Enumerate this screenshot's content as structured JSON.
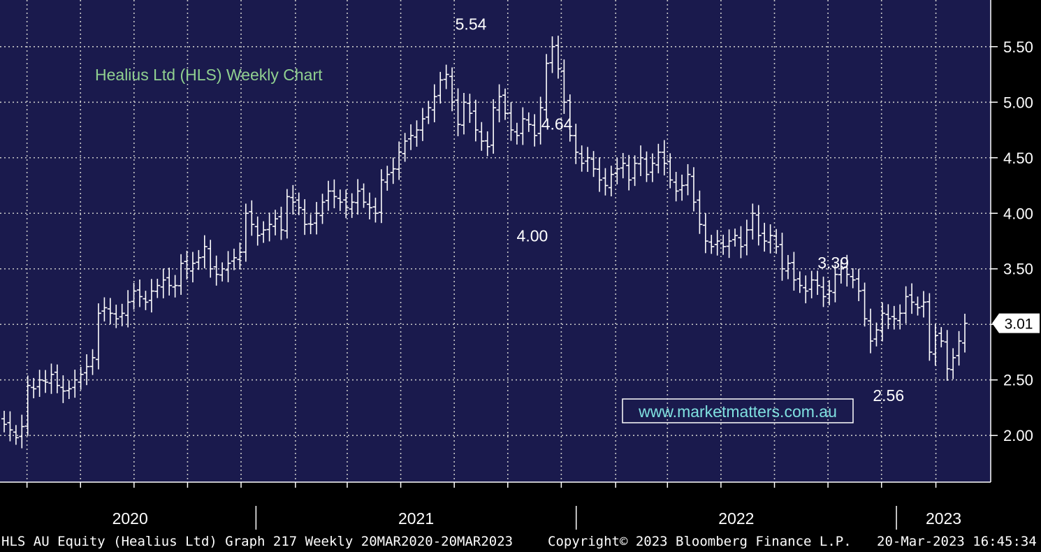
{
  "chart_data": {
    "type": "ohlc",
    "title": "Healius Ltd (HLS) Weekly Chart",
    "watermark": "www.marketmatters.com.au",
    "last_price": "3.01",
    "y_ticks": [
      "2.00",
      "2.50",
      "3.00",
      "3.50",
      "4.00",
      "4.50",
      "5.00",
      "5.50"
    ],
    "ylim": [
      1.58,
      5.92
    ],
    "x_range": [
      "2020-03-20",
      "2023-03-20"
    ],
    "years": [
      "2020",
      "2021",
      "2022",
      "2023"
    ],
    "colors": {
      "background": "#1a1a4d",
      "grid": "#c8c8c8",
      "bars": "#ffffff",
      "title": "#90d090",
      "watermark": "#7fe0e0"
    },
    "annotations": [
      {
        "label": "5.54",
        "date": "2021-09-03",
        "value": 5.54,
        "pos": "above"
      },
      {
        "label": "4.64",
        "date": "2021-12-10",
        "value": 4.64,
        "pos": "above"
      },
      {
        "label": "4.00",
        "date": "2021-11-12",
        "value": 4.0,
        "pos": "below"
      },
      {
        "label": "3.39",
        "date": "2022-10-21",
        "value": 3.39,
        "pos": "above"
      },
      {
        "label": "2.56",
        "date": "2022-12-23",
        "value": 2.56,
        "pos": "below"
      }
    ],
    "series": [
      {
        "weekly_close": [
          2.1,
          2.05,
          1.98,
          2.08,
          2.45,
          2.42,
          2.5,
          2.48,
          2.55,
          2.45,
          2.4,
          2.42,
          2.5,
          2.55,
          2.62,
          2.7,
          3.1,
          3.15,
          3.1,
          3.05,
          3.1,
          3.2,
          3.3,
          3.25,
          3.2,
          3.3,
          3.35,
          3.4,
          3.35,
          3.35,
          3.55,
          3.5,
          3.55,
          3.6,
          3.7,
          3.5,
          3.45,
          3.5,
          3.55,
          3.6,
          3.65,
          4.0,
          3.9,
          3.8,
          3.85,
          3.9,
          3.95,
          3.85,
          4.15,
          4.1,
          4.05,
          3.9,
          3.9,
          4.0,
          4.1,
          4.2,
          4.15,
          4.1,
          4.05,
          4.1,
          4.2,
          4.1,
          4.05,
          4.0,
          4.3,
          4.35,
          4.4,
          4.55,
          4.65,
          4.7,
          4.75,
          4.85,
          4.95,
          5.05,
          5.2,
          5.25,
          5.0,
          4.8,
          5.0,
          4.9,
          4.75,
          4.65,
          4.6,
          4.95,
          5.05,
          4.9,
          4.75,
          4.7,
          4.85,
          4.8,
          4.7,
          4.95,
          5.35,
          5.5,
          5.3,
          5.0,
          4.7,
          4.55,
          4.45,
          4.5,
          4.4,
          4.3,
          4.25,
          4.35,
          4.4,
          4.45,
          4.3,
          4.45,
          4.5,
          4.35,
          4.45,
          4.55,
          4.45,
          4.3,
          4.2,
          4.25,
          4.35,
          4.1,
          3.9,
          3.75,
          3.7,
          3.75,
          3.7,
          3.75,
          3.8,
          3.7,
          3.85,
          4.0,
          3.8,
          3.75,
          3.8,
          3.7,
          3.5,
          3.55,
          3.4,
          3.35,
          3.3,
          3.4,
          3.35,
          3.25,
          3.3,
          3.45,
          3.5,
          3.45,
          3.4,
          3.3,
          3.05,
          2.85,
          2.95,
          3.1,
          3.05,
          3.05,
          3.1,
          3.25,
          3.2,
          3.15,
          3.2,
          2.75,
          2.9,
          2.85,
          2.6,
          2.7,
          2.85,
          3.01
        ]
      }
    ]
  },
  "footer": {
    "left": "HLS AU Equity (Healius Ltd) Graph 217  Weekly 20MAR2020-20MAR2023",
    "center": "Copyright© 2023 Bloomberg Finance L.P.",
    "right": "20-Mar-2023 16:45:34"
  }
}
